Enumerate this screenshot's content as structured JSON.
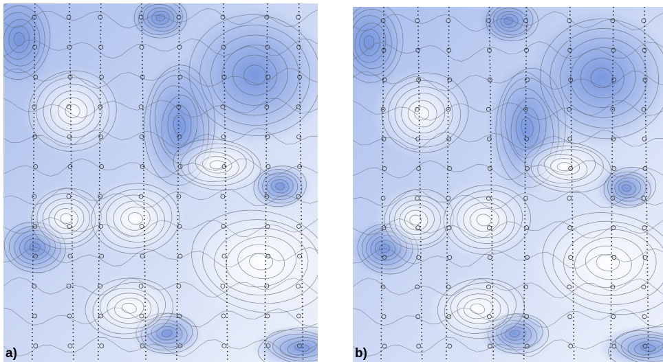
{
  "panels": [
    {
      "label": "a)"
    },
    {
      "label": "b)"
    }
  ]
}
